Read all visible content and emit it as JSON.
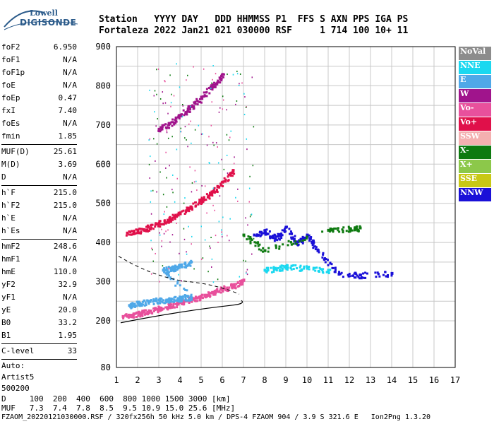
{
  "logo": {
    "line1": "Lowell",
    "line2": "DIGISONDE"
  },
  "header": {
    "row1": "Station   YYYY DAY   DDD HHMMSS P1  FFS S AXN PPS IGA PS",
    "row2": "Fortaleza 2022 Jan21 021 030000 RSF     1 714 100 10+ 11"
  },
  "params": {
    "group1": [
      {
        "k": "foF2",
        "v": "6.950"
      },
      {
        "k": "foF1",
        "v": "N/A"
      },
      {
        "k": "foF1p",
        "v": "N/A"
      },
      {
        "k": "foE",
        "v": "N/A"
      },
      {
        "k": "foEp",
        "v": "0.47"
      },
      {
        "k": "fxI",
        "v": "7.40"
      },
      {
        "k": "foEs",
        "v": "N/A"
      },
      {
        "k": "fmin",
        "v": "1.85"
      }
    ],
    "group2": [
      {
        "k": "MUF(D)",
        "v": "25.61"
      },
      {
        "k": "M(D)",
        "v": "3.69"
      },
      {
        "k": "D",
        "v": "N/A"
      }
    ],
    "group3": [
      {
        "k": "h`F",
        "v": "215.0"
      },
      {
        "k": "h`F2",
        "v": "215.0"
      },
      {
        "k": "h`E",
        "v": "N/A"
      },
      {
        "k": "h`Es",
        "v": "N/A"
      }
    ],
    "group4": [
      {
        "k": "hmF2",
        "v": "248.6"
      },
      {
        "k": "hmF1",
        "v": "N/A"
      },
      {
        "k": "hmE",
        "v": "110.0"
      },
      {
        "k": "yF2",
        "v": "32.9"
      },
      {
        "k": "yF1",
        "v": "N/A"
      },
      {
        "k": "yE",
        "v": "20.0"
      },
      {
        "k": "B0",
        "v": "33.2"
      },
      {
        "k": "B1",
        "v": "1.95"
      }
    ],
    "group5": [
      {
        "k": "C-level",
        "v": "33"
      }
    ],
    "auto_label": "Auto:",
    "auto_name": "Artist5",
    "auto_code": "500200"
  },
  "legend": [
    {
      "label": "NoVal",
      "color": "#8c8c8c"
    },
    {
      "label": "NNE",
      "color": "#1ad8f0"
    },
    {
      "label": "E",
      "color": "#4fa8e8"
    },
    {
      "label": "W",
      "color": "#a0148c"
    },
    {
      "label": "Vo-",
      "color": "#e8509c"
    },
    {
      "label": "Vo+",
      "color": "#e0104a"
    },
    {
      "label": "SSW",
      "color": "#f4b0b0"
    },
    {
      "label": "X-",
      "color": "#0e7a10"
    },
    {
      "label": "X+",
      "color": "#8cc84a"
    },
    {
      "label": "SSE",
      "color": "#c8c814"
    },
    {
      "label": "NNW",
      "color": "#1a10d8"
    }
  ],
  "footer": {
    "row1": "D     100  200  400  600  800 1000 1500 3000 [km]",
    "row2": "MUF   7.3  7.4  7.8  8.5  9.5 10.9 15.0 25.6 [MHz]",
    "file": "FZAOM_20220121030000.RSF / 320fx256h 50 kHz 5.0 km / DPS-4 FZAOM 904 / 3.9 S 321.6 E   Ion2Png 1.3.20"
  },
  "chart_data": {
    "type": "scatter",
    "x_ticks": [
      "1",
      "2",
      "3",
      "4",
      "5",
      "6",
      "7",
      "8",
      "9",
      "10",
      "11",
      "12",
      "13",
      "14",
      "15",
      "16",
      "17"
    ],
    "y_ticks": [
      "80",
      "200",
      "300",
      "400",
      "500",
      "600",
      "700",
      "800",
      "900"
    ],
    "xlim": [
      1,
      17
    ],
    "ylim": [
      80,
      900
    ],
    "grid": true,
    "legend_position": "right",
    "series": [
      {
        "name": "Vo-",
        "points": [
          [
            1.3,
            212
          ],
          [
            1.8,
            218
          ],
          [
            2.2,
            222
          ],
          [
            2.6,
            226
          ],
          [
            3.0,
            232
          ],
          [
            3.5,
            240
          ],
          [
            4.0,
            248
          ],
          [
            4.5,
            256
          ],
          [
            5.0,
            264
          ],
          [
            5.5,
            272
          ],
          [
            6.0,
            282
          ],
          [
            6.5,
            292
          ],
          [
            7.0,
            305
          ]
        ]
      },
      {
        "name": "E",
        "points": [
          [
            1.6,
            240
          ],
          [
            2.0,
            246
          ],
          [
            2.5,
            250
          ],
          [
            3.0,
            254
          ],
          [
            3.5,
            256
          ],
          [
            4.0,
            258
          ],
          [
            4.5,
            262
          ],
          [
            3.2,
            330
          ],
          [
            3.6,
            335
          ],
          [
            4.0,
            342
          ],
          [
            4.5,
            350
          ]
        ]
      },
      {
        "name": "Vo+",
        "points": [
          [
            1.5,
            425
          ],
          [
            2.0,
            430
          ],
          [
            2.5,
            440
          ],
          [
            3.0,
            450
          ],
          [
            3.5,
            462
          ],
          [
            4.0,
            475
          ],
          [
            4.5,
            492
          ],
          [
            5.0,
            510
          ],
          [
            5.5,
            530
          ],
          [
            6.0,
            555
          ],
          [
            6.5,
            585
          ]
        ]
      },
      {
        "name": "W",
        "points": [
          [
            3.0,
            690
          ],
          [
            3.5,
            705
          ],
          [
            4.0,
            725
          ],
          [
            4.5,
            748
          ],
          [
            5.0,
            772
          ],
          [
            5.5,
            800
          ],
          [
            6.0,
            830
          ]
        ]
      },
      {
        "name": "NNW",
        "points": [
          [
            7.5,
            420
          ],
          [
            8.0,
            430
          ],
          [
            8.5,
            410
          ],
          [
            9.0,
            440
          ],
          [
            9.5,
            400
          ],
          [
            10.0,
            420
          ],
          [
            10.5,
            380
          ],
          [
            11.5,
            320
          ],
          [
            12.5,
            318
          ],
          [
            14.0,
            322
          ]
        ]
      },
      {
        "name": "X-",
        "points": [
          [
            7.0,
            420
          ],
          [
            8.0,
            380
          ],
          [
            11.0,
            432
          ],
          [
            12.0,
            436
          ],
          [
            12.5,
            438
          ]
        ]
      },
      {
        "name": "NNE",
        "points": [
          [
            8.0,
            330
          ],
          [
            8.5,
            335
          ],
          [
            9.0,
            340
          ],
          [
            10.0,
            335
          ],
          [
            11.0,
            330
          ]
        ]
      }
    ]
  }
}
